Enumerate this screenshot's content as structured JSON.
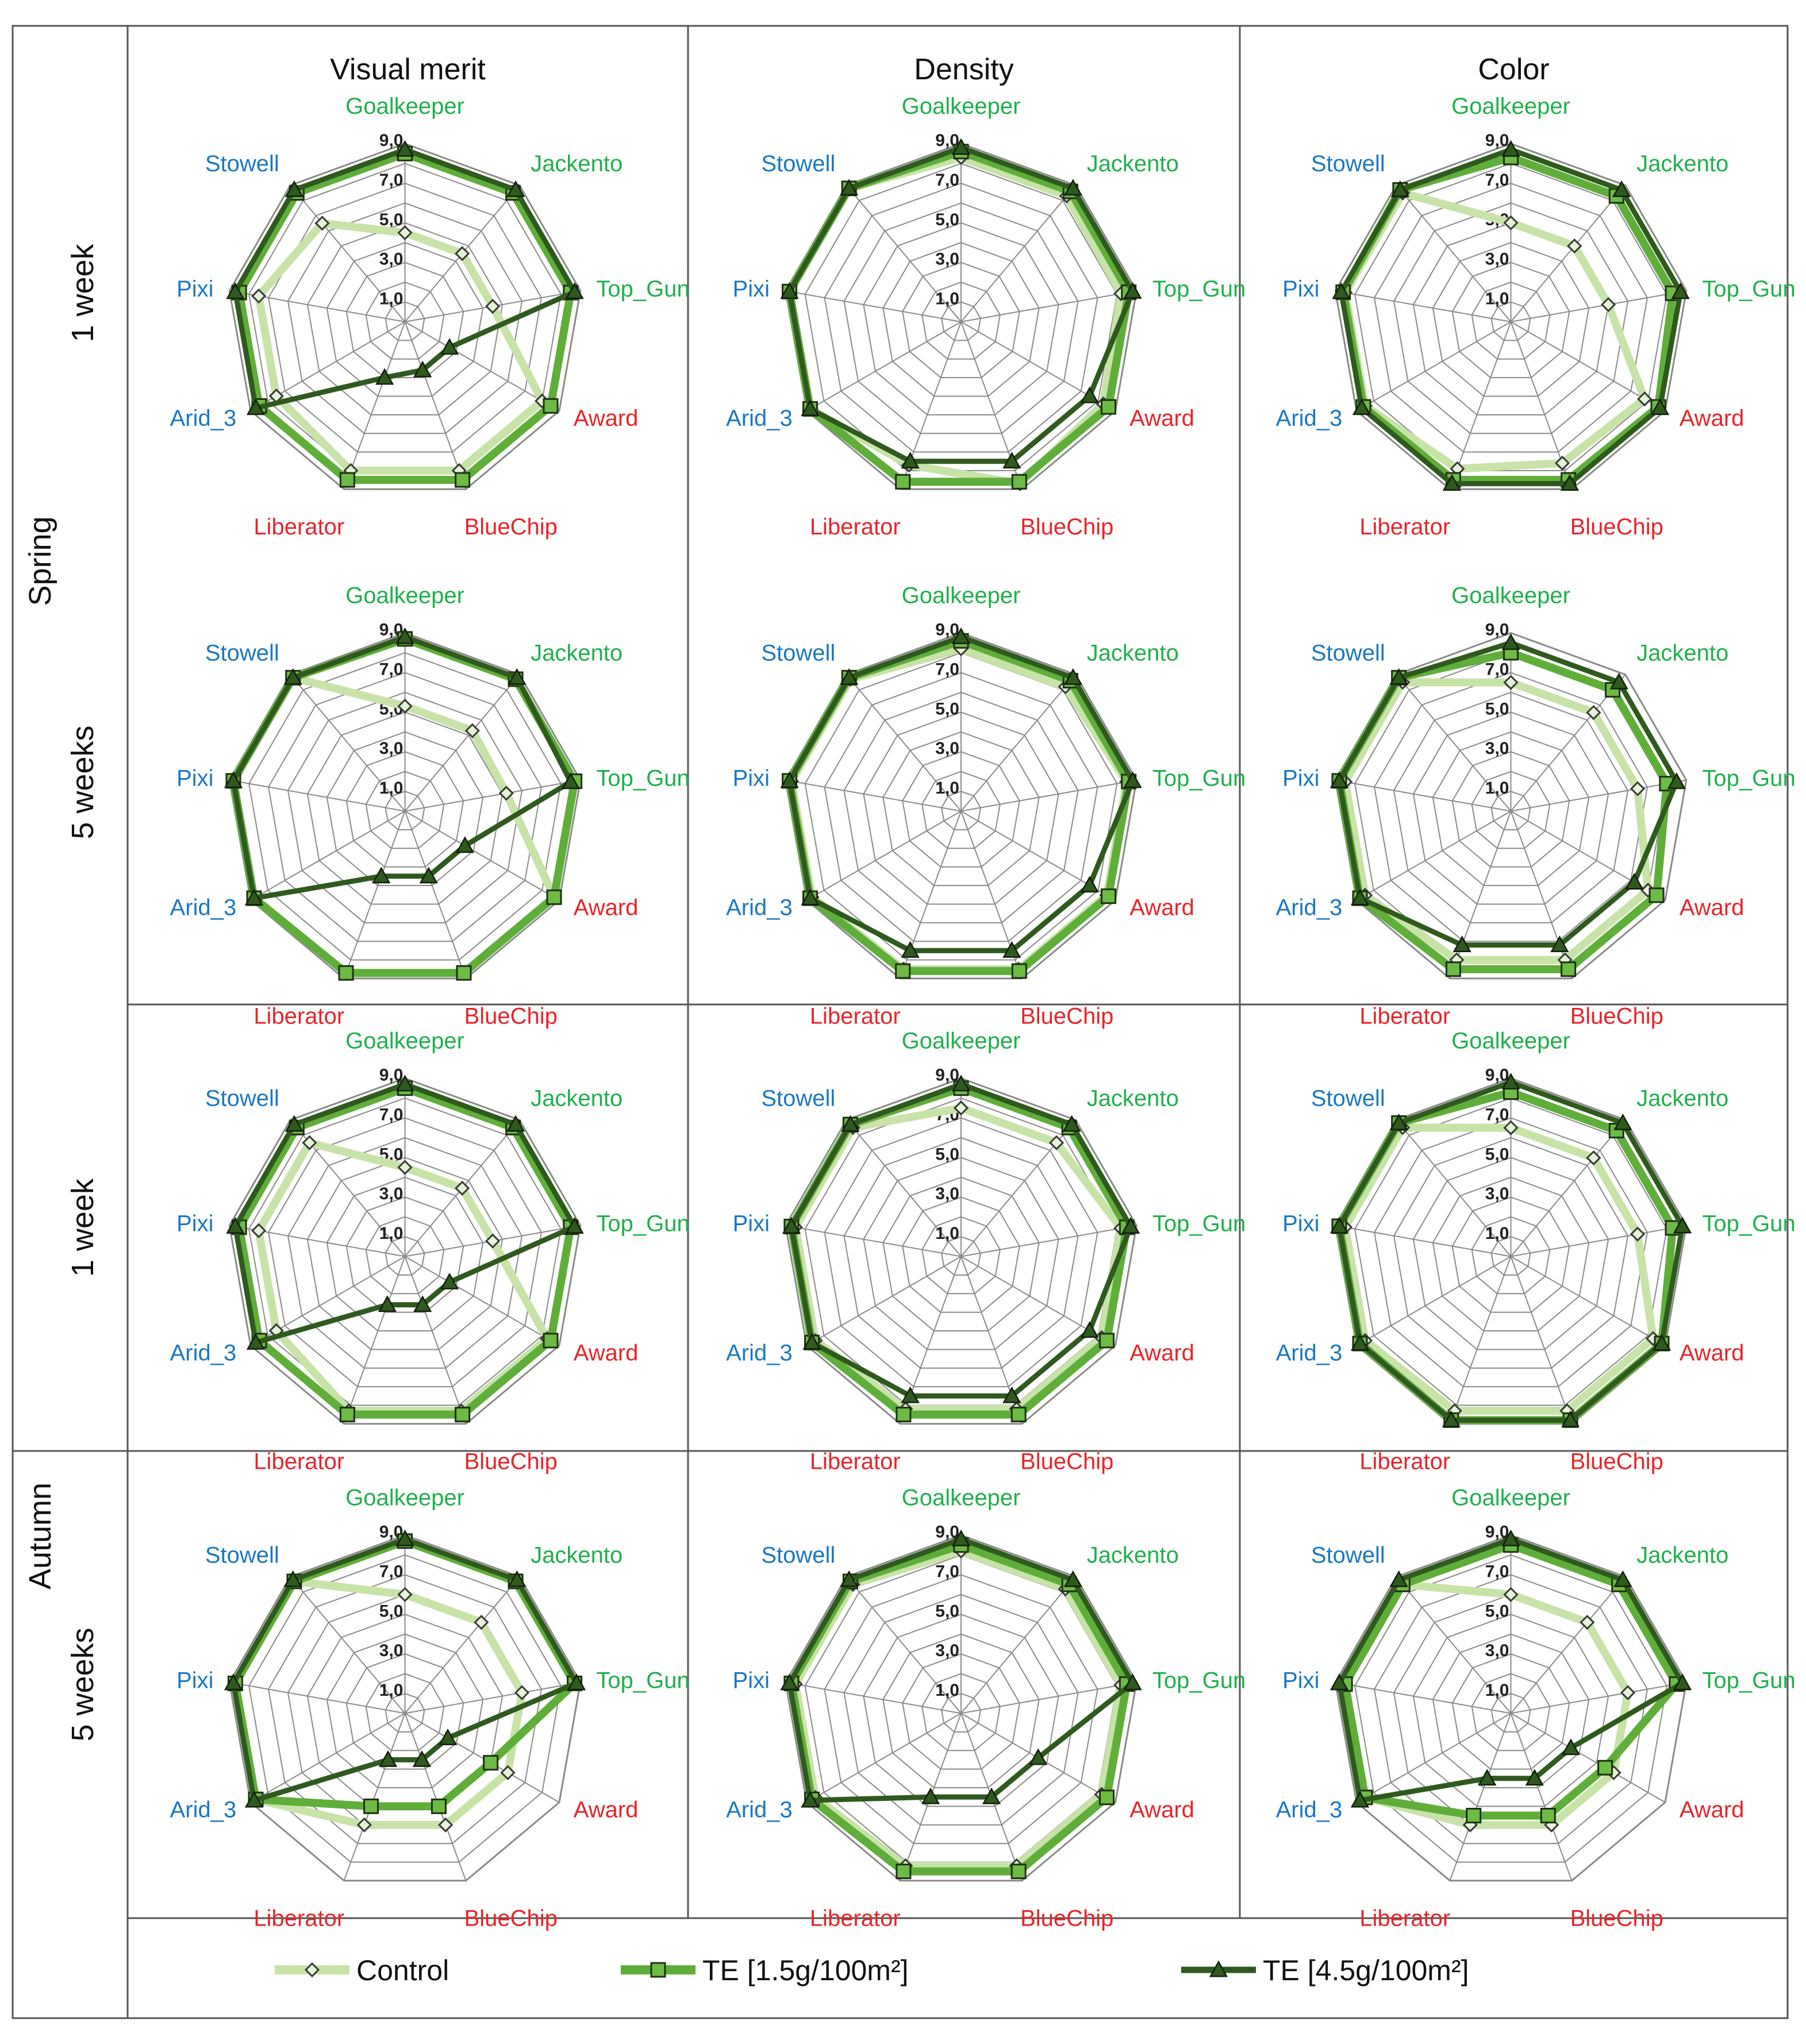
{
  "colors": {
    "control": "#c8e3a8",
    "te_low": "#5fae3a",
    "te_high": "#2f5a1e",
    "green_label": "#1fb04c",
    "blue_label": "#1a78c2",
    "red_label": "#e8242a",
    "grid": "#8a8a8a",
    "frame": "#555555"
  },
  "chart_data": {
    "type": "radar",
    "columns": [
      "Visual merit",
      "Density",
      "Color"
    ],
    "season_labels": [
      "Spring",
      "Autumn"
    ],
    "period_labels": [
      "1 week",
      "5 weeks",
      "1 week",
      "5 weeks"
    ],
    "categories": [
      "Goalkeeper",
      "Jackento",
      "Top_Gun",
      "Award",
      "BlueChip",
      "Liberator",
      "Arid_3",
      "Pixi",
      "Stowell"
    ],
    "category_groups": [
      "green",
      "green",
      "green",
      "red",
      "red",
      "red",
      "blue",
      "blue",
      "blue"
    ],
    "tick_labels": [
      "1,0",
      "3,0",
      "5,0",
      "7,0",
      "9,0"
    ],
    "range": [
      0,
      9
    ],
    "series_names": [
      "Control",
      "TE [1.5g/100m²]",
      "TE [4.5g/100m²]"
    ],
    "legend": {
      "control": "Control",
      "te_low": "TE [1.5g/100m²]",
      "te_high": "TE [4.5g/100m²]"
    },
    "panels": [
      {
        "column": "Visual merit",
        "season": "Spring",
        "period": "1 week",
        "series": [
          {
            "name": "Control",
            "values": [
              4.5,
              4.5,
              4.5,
              8.0,
              8.0,
              8.0,
              7.5,
              7.5,
              6.5
            ]
          },
          {
            "name": "TE [1.5g/100m²]",
            "values": [
              8.5,
              8.5,
              8.5,
              8.5,
              8.5,
              8.5,
              8.5,
              8.5,
              8.5
            ]
          },
          {
            "name": "TE [4.5g/100m²]",
            "values": [
              8.7,
              8.7,
              8.7,
              2.6,
              2.6,
              3.0,
              8.7,
              8.7,
              8.7
            ]
          }
        ]
      },
      {
        "column": "Density",
        "season": "Spring",
        "period": "1 week",
        "series": [
          {
            "name": "Control",
            "values": [
              8.3,
              8.3,
              8.2,
              8.3,
              8.7,
              7.7,
              8.8,
              8.8,
              8.8
            ]
          },
          {
            "name": "TE [1.5g/100m²]",
            "values": [
              8.6,
              8.6,
              8.6,
              8.6,
              8.6,
              8.6,
              8.8,
              8.8,
              8.8
            ]
          },
          {
            "name": "TE [4.5g/100m²]",
            "values": [
              8.8,
              8.8,
              8.8,
              7.5,
              7.5,
              7.5,
              8.8,
              8.8,
              8.8
            ]
          }
        ]
      },
      {
        "column": "Color",
        "season": "Spring",
        "period": "1 week",
        "series": [
          {
            "name": "Control",
            "values": [
              5.0,
              5.0,
              5.0,
              7.8,
              7.6,
              7.9,
              8.5,
              8.5,
              8.5
            ]
          },
          {
            "name": "TE [1.5g/100m²]",
            "values": [
              8.3,
              8.3,
              8.3,
              8.6,
              8.5,
              8.5,
              8.6,
              8.6,
              8.7
            ]
          },
          {
            "name": "TE [4.5g/100m²]",
            "values": [
              8.7,
              8.7,
              8.7,
              8.7,
              8.7,
              8.7,
              8.7,
              8.7,
              8.7
            ]
          }
        ]
      },
      {
        "column": "Visual merit",
        "season": "Spring",
        "period": "5 weeks",
        "series": [
          {
            "name": "Control",
            "values": [
              5.3,
              5.3,
              5.2,
              8.7,
              8.7,
              8.7,
              8.8,
              8.8,
              8.8
            ]
          },
          {
            "name": "TE [1.5g/100m²]",
            "values": [
              8.7,
              8.7,
              8.7,
              8.7,
              8.7,
              8.7,
              8.8,
              8.8,
              8.8
            ]
          },
          {
            "name": "TE [4.5g/100m²]",
            "values": [
              8.8,
              8.8,
              8.5,
              3.5,
              3.5,
              3.5,
              8.8,
              8.8,
              8.8
            ]
          }
        ]
      },
      {
        "column": "Density",
        "season": "Spring",
        "period": "5 weeks",
        "series": [
          {
            "name": "Control",
            "values": [
              8.2,
              8.2,
              8.5,
              8.5,
              8.5,
              8.5,
              8.7,
              8.7,
              8.7
            ]
          },
          {
            "name": "TE [1.5g/100m²]",
            "values": [
              8.6,
              8.6,
              8.6,
              8.6,
              8.6,
              8.6,
              8.8,
              8.8,
              8.8
            ]
          },
          {
            "name": "TE [4.5g/100m²]",
            "values": [
              8.8,
              8.8,
              8.8,
              7.5,
              7.5,
              7.5,
              8.8,
              8.8,
              8.8
            ]
          }
        ]
      },
      {
        "column": "Color",
        "season": "Spring",
        "period": "5 weeks",
        "series": [
          {
            "name": "Control",
            "values": [
              6.5,
              6.5,
              6.5,
              8.0,
              8.0,
              8.0,
              8.5,
              8.5,
              8.5
            ]
          },
          {
            "name": "TE [1.5g/100m²]",
            "values": [
              8.0,
              8.0,
              8.0,
              8.5,
              8.5,
              8.5,
              8.8,
              8.8,
              8.8
            ]
          },
          {
            "name": "TE [4.5g/100m²]",
            "values": [
              8.5,
              8.5,
              8.5,
              7.2,
              7.2,
              7.2,
              8.8,
              8.8,
              8.8
            ]
          }
        ]
      },
      {
        "column": "Visual merit",
        "season": "Autumn",
        "period": "1 week",
        "series": [
          {
            "name": "Control",
            "values": [
              4.5,
              4.5,
              4.5,
              8.3,
              8.3,
              8.3,
              7.5,
              7.5,
              7.5
            ]
          },
          {
            "name": "TE [1.5g/100m²]",
            "values": [
              8.5,
              8.5,
              8.5,
              8.5,
              8.5,
              8.5,
              8.5,
              8.5,
              8.5
            ]
          },
          {
            "name": "TE [4.5g/100m²]",
            "values": [
              8.7,
              8.7,
              8.7,
              2.6,
              2.6,
              2.6,
              8.7,
              8.7,
              8.7
            ]
          }
        ]
      },
      {
        "column": "Density",
        "season": "Autumn",
        "period": "1 week",
        "series": [
          {
            "name": "Control",
            "values": [
              7.5,
              7.5,
              8.2,
              8.2,
              8.2,
              8.2,
              8.5,
              8.5,
              8.5
            ]
          },
          {
            "name": "TE [1.5g/100m²]",
            "values": [
              8.5,
              8.5,
              8.5,
              8.5,
              8.5,
              8.5,
              8.7,
              8.7,
              8.7
            ]
          },
          {
            "name": "TE [4.5g/100m²]",
            "values": [
              8.7,
              8.7,
              8.7,
              7.5,
              7.5,
              7.5,
              8.7,
              8.7,
              8.7
            ]
          }
        ]
      },
      {
        "column": "Color",
        "season": "Autumn",
        "period": "1 week",
        "series": [
          {
            "name": "Control",
            "values": [
              6.5,
              6.5,
              6.5,
              8.3,
              8.3,
              8.3,
              8.5,
              8.5,
              8.5
            ]
          },
          {
            "name": "TE [1.5g/100m²]",
            "values": [
              8.3,
              8.3,
              8.3,
              8.8,
              8.8,
              8.8,
              8.8,
              8.8,
              8.8
            ]
          },
          {
            "name": "TE [4.5g/100m²]",
            "values": [
              8.8,
              8.8,
              8.8,
              8.8,
              8.8,
              8.8,
              8.8,
              8.8,
              8.8
            ]
          }
        ]
      },
      {
        "column": "Visual merit",
        "season": "Autumn",
        "period": "5 weeks",
        "series": [
          {
            "name": "Control",
            "values": [
              6.0,
              6.0,
              6.0,
              6.0,
              6.0,
              6.0,
              8.7,
              8.7,
              8.7
            ]
          },
          {
            "name": "TE [1.5g/100m²]",
            "values": [
              8.7,
              8.7,
              8.7,
              5.0,
              5.0,
              5.0,
              8.7,
              8.7,
              8.7
            ]
          },
          {
            "name": "TE [4.5g/100m²]",
            "values": [
              8.8,
              8.8,
              8.8,
              2.5,
              2.5,
              2.5,
              8.8,
              8.8,
              8.8
            ]
          }
        ]
      },
      {
        "column": "Density",
        "season": "Autumn",
        "period": "5 weeks",
        "series": [
          {
            "name": "Control",
            "values": [
              8.2,
              8.2,
              8.2,
              8.2,
              8.2,
              8.2,
              8.5,
              8.5,
              8.5
            ]
          },
          {
            "name": "TE [1.5g/100m²]",
            "values": [
              8.5,
              8.5,
              8.5,
              8.5,
              8.5,
              8.5,
              8.7,
              8.7,
              8.7
            ]
          },
          {
            "name": "TE [4.5g/100m²]",
            "values": [
              8.8,
              8.8,
              8.8,
              4.5,
              4.5,
              4.5,
              8.8,
              8.8,
              8.8
            ]
          }
        ]
      },
      {
        "column": "Color",
        "season": "Autumn",
        "period": "5 weeks",
        "series": [
          {
            "name": "Control",
            "values": [
              6.0,
              6.0,
              6.0,
              6.0,
              6.0,
              6.0,
              8.5,
              8.5,
              8.5
            ]
          },
          {
            "name": "TE [1.5g/100m²]",
            "values": [
              8.5,
              8.5,
              8.5,
              5.5,
              5.5,
              5.5,
              8.5,
              8.5,
              8.5
            ]
          },
          {
            "name": "TE [4.5g/100m²]",
            "values": [
              8.8,
              8.8,
              8.8,
              3.5,
              3.5,
              3.5,
              8.8,
              8.8,
              8.8
            ]
          }
        ]
      }
    ]
  }
}
